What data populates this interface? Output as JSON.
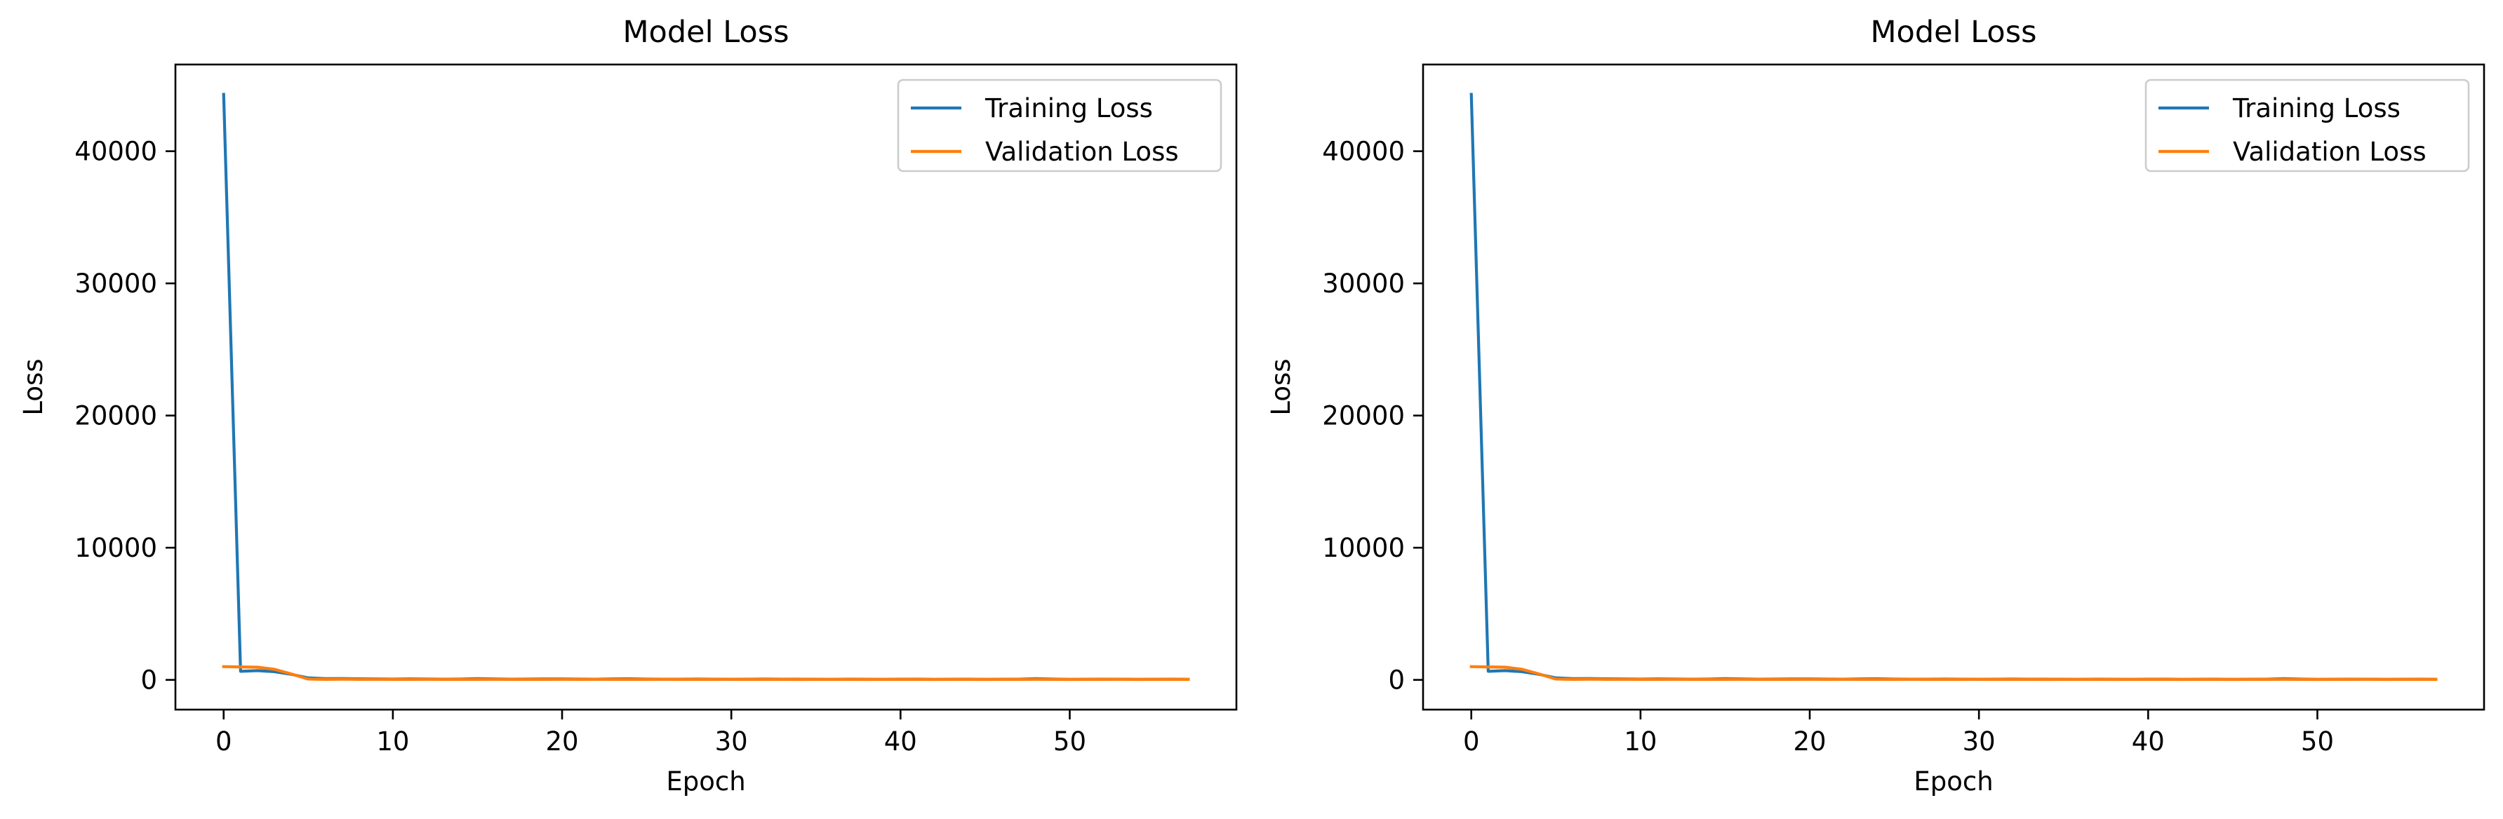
{
  "chart_data": [
    {
      "type": "line",
      "title": "Model Loss",
      "xlabel": "Epoch",
      "ylabel": "Loss",
      "xlim": [
        -2.85,
        59.85
      ],
      "ylim": [
        -2250,
        46560
      ],
      "xticks": [
        0,
        10,
        20,
        30,
        40,
        50
      ],
      "yticks": [
        0,
        10000,
        20000,
        30000,
        40000
      ],
      "legend_position": "upper right",
      "grid": false,
      "series": [
        {
          "name": "Training Loss",
          "color": "#1f77b4",
          "x": [
            0,
            1,
            2,
            3,
            4,
            5,
            6,
            7,
            8,
            9,
            10,
            11,
            12,
            13,
            14,
            15,
            16,
            17,
            18,
            19,
            20,
            21,
            22,
            23,
            24,
            25,
            26,
            27,
            28,
            29,
            30,
            31,
            32,
            33,
            34,
            35,
            36,
            37,
            38,
            39,
            40,
            41,
            42,
            43,
            44,
            45,
            46,
            47,
            48,
            49,
            50,
            51,
            52,
            53,
            54,
            55,
            56,
            57
          ],
          "y": [
            44300,
            650,
            700,
            620,
            420,
            150,
            90,
            100,
            80,
            70,
            60,
            75,
            65,
            55,
            60,
            90,
            70,
            55,
            60,
            75,
            70,
            60,
            55,
            70,
            80,
            60,
            55,
            50,
            60,
            55,
            45,
            50,
            60,
            55,
            50,
            45,
            40,
            50,
            45,
            40,
            55,
            50,
            40,
            45,
            50,
            40,
            45,
            55,
            90,
            60,
            40,
            45,
            50,
            55,
            40,
            45,
            50,
            40
          ]
        },
        {
          "name": "Validation Loss",
          "color": "#ff7f0e",
          "x": [
            0,
            1,
            2,
            3,
            4,
            5,
            6,
            7,
            8,
            9,
            10,
            11,
            12,
            13,
            14,
            15,
            16,
            17,
            18,
            19,
            20,
            21,
            22,
            23,
            24,
            25,
            26,
            27,
            28,
            29,
            30,
            31,
            32,
            33,
            34,
            35,
            36,
            37,
            38,
            39,
            40,
            41,
            42,
            43,
            44,
            45,
            46,
            47,
            48,
            49,
            50,
            51,
            52,
            53,
            54,
            55,
            56,
            57
          ],
          "y": [
            1000,
            980,
            960,
            800,
            450,
            60,
            40,
            50,
            40,
            45,
            40,
            35,
            45,
            40,
            35,
            40,
            45,
            40,
            35,
            40,
            45,
            40,
            45,
            40,
            35,
            40,
            45,
            40,
            35,
            40,
            45,
            40,
            35,
            40,
            30,
            35,
            40,
            35,
            30,
            35,
            40,
            35,
            30,
            35,
            40,
            30,
            35,
            40,
            45,
            35,
            30,
            35,
            40,
            45,
            30,
            35,
            40,
            35
          ]
        }
      ]
    },
    {
      "type": "line",
      "title": "Model Loss",
      "xlabel": "Epoch",
      "ylabel": "Loss",
      "xlim": [
        -2.85,
        59.85
      ],
      "ylim": [
        -2250,
        46560
      ],
      "xticks": [
        0,
        10,
        20,
        30,
        40,
        50
      ],
      "yticks": [
        0,
        10000,
        20000,
        30000,
        40000
      ],
      "legend_position": "upper right",
      "grid": false,
      "series": [
        {
          "name": "Training Loss",
          "color": "#1f77b4",
          "x": [
            0,
            1,
            2,
            3,
            4,
            5,
            6,
            7,
            8,
            9,
            10,
            11,
            12,
            13,
            14,
            15,
            16,
            17,
            18,
            19,
            20,
            21,
            22,
            23,
            24,
            25,
            26,
            27,
            28,
            29,
            30,
            31,
            32,
            33,
            34,
            35,
            36,
            37,
            38,
            39,
            40,
            41,
            42,
            43,
            44,
            45,
            46,
            47,
            48,
            49,
            50,
            51,
            52,
            53,
            54,
            55,
            56,
            57
          ],
          "y": [
            44300,
            650,
            700,
            620,
            420,
            150,
            90,
            100,
            80,
            70,
            60,
            75,
            65,
            55,
            60,
            90,
            70,
            55,
            60,
            75,
            70,
            60,
            55,
            70,
            80,
            60,
            55,
            50,
            60,
            55,
            45,
            50,
            60,
            55,
            50,
            45,
            40,
            50,
            45,
            40,
            55,
            50,
            40,
            45,
            50,
            40,
            45,
            55,
            90,
            60,
            40,
            45,
            50,
            55,
            40,
            45,
            50,
            40
          ]
        },
        {
          "name": "Validation Loss",
          "color": "#ff7f0e",
          "x": [
            0,
            1,
            2,
            3,
            4,
            5,
            6,
            7,
            8,
            9,
            10,
            11,
            12,
            13,
            14,
            15,
            16,
            17,
            18,
            19,
            20,
            21,
            22,
            23,
            24,
            25,
            26,
            27,
            28,
            29,
            30,
            31,
            32,
            33,
            34,
            35,
            36,
            37,
            38,
            39,
            40,
            41,
            42,
            43,
            44,
            45,
            46,
            47,
            48,
            49,
            50,
            51,
            52,
            53,
            54,
            55,
            56,
            57
          ],
          "y": [
            1000,
            980,
            960,
            800,
            450,
            60,
            40,
            50,
            40,
            45,
            40,
            35,
            45,
            40,
            35,
            40,
            45,
            40,
            35,
            40,
            45,
            40,
            45,
            40,
            35,
            40,
            45,
            40,
            35,
            40,
            45,
            40,
            35,
            40,
            30,
            35,
            40,
            35,
            30,
            35,
            40,
            35,
            30,
            35,
            40,
            30,
            35,
            40,
            45,
            35,
            30,
            35,
            40,
            45,
            30,
            35,
            40,
            35
          ]
        }
      ]
    }
  ]
}
